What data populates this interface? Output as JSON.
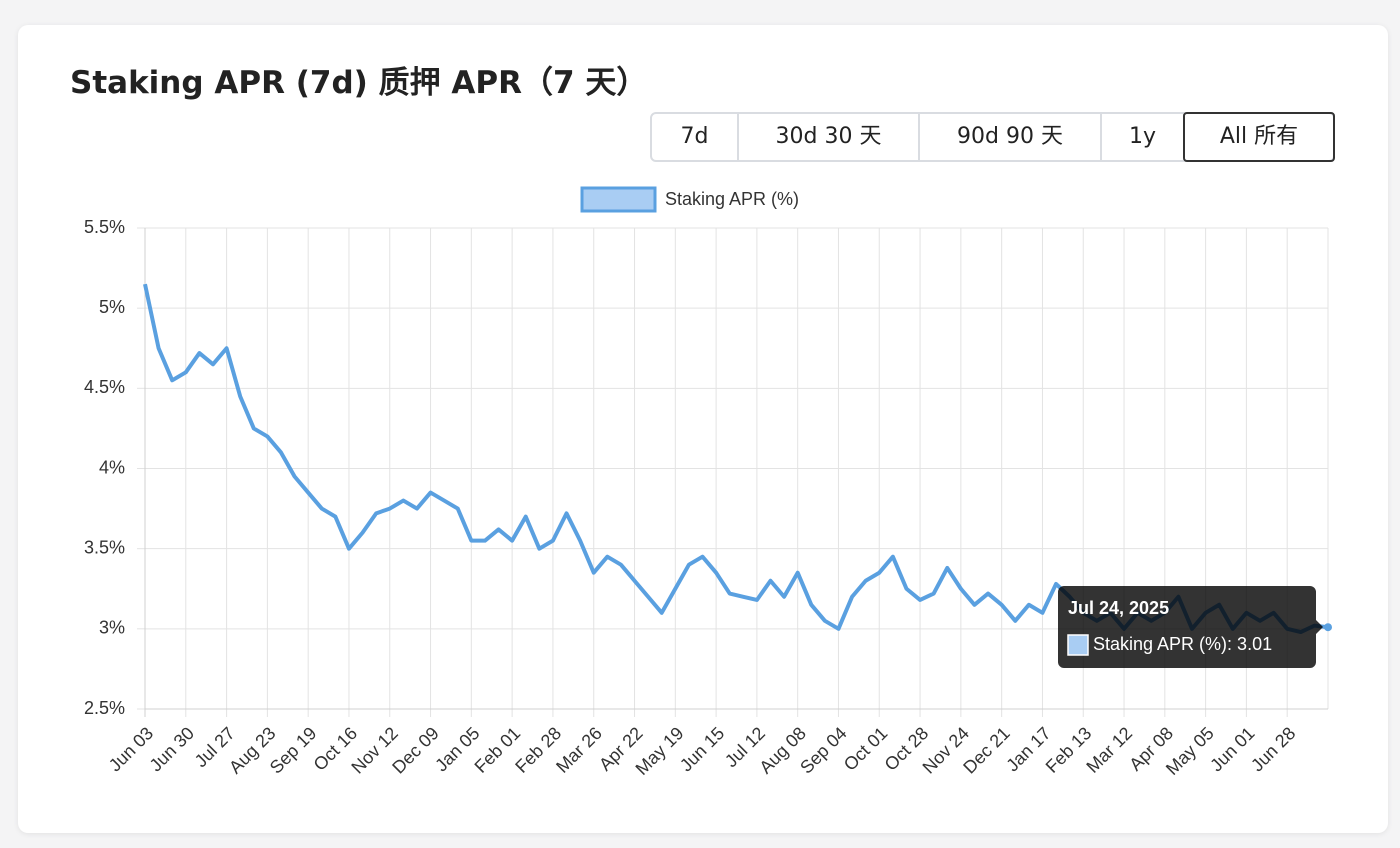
{
  "controls": {
    "buttons": [
      "7d",
      "30d  30 天",
      "90d  90 天",
      "1y",
      "All  所有"
    ],
    "selected": 4
  },
  "chart_data": {
    "type": "line",
    "title": "Staking APR (7d)  质押 APR（7 天）",
    "categories": [
      "Jun 03",
      null,
      null,
      "Jun 30",
      null,
      null,
      "Jul 27",
      null,
      null,
      "Aug 23",
      null,
      null,
      "Sep 19",
      null,
      null,
      "Oct 16",
      null,
      null,
      "Nov 12",
      null,
      null,
      "Dec 09",
      null,
      null,
      "Jan 05",
      null,
      null,
      "Feb 01",
      null,
      null,
      "Feb 28",
      null,
      null,
      "Mar 26",
      null,
      null,
      "Apr 22",
      null,
      null,
      "May 19",
      null,
      null,
      "Jun 15",
      null,
      null,
      "Jul 12",
      null,
      null,
      "Aug 08",
      null,
      null,
      "Sep 04",
      null,
      null,
      "Oct 01",
      null,
      null,
      "Oct 28",
      null,
      null,
      "Nov 24",
      null,
      null,
      "Dec 21",
      null,
      null,
      "Jan 17",
      null,
      null,
      "Feb 13",
      null,
      null,
      "Mar 12",
      null,
      null,
      "Apr 08",
      null,
      null,
      "May 05",
      null,
      null,
      "Jun 01",
      null,
      null,
      "Jun 28",
      null,
      null,
      null
    ],
    "series": [
      {
        "name": "Staking APR (%)",
        "color": "#5aa0e0",
        "fill": "#a9cdf3",
        "values": [
          5.15,
          4.75,
          4.55,
          4.6,
          4.72,
          4.65,
          4.75,
          4.45,
          4.25,
          4.2,
          4.1,
          3.95,
          3.85,
          3.75,
          3.7,
          3.5,
          3.6,
          3.72,
          3.75,
          3.8,
          3.75,
          3.85,
          3.8,
          3.75,
          3.55,
          3.55,
          3.62,
          3.55,
          3.7,
          3.5,
          3.55,
          3.72,
          3.55,
          3.35,
          3.45,
          3.4,
          3.3,
          3.2,
          3.1,
          3.25,
          3.4,
          3.45,
          3.35,
          3.22,
          3.2,
          3.18,
          3.3,
          3.2,
          3.35,
          3.15,
          3.05,
          3.0,
          3.2,
          3.3,
          3.35,
          3.45,
          3.25,
          3.18,
          3.22,
          3.38,
          3.25,
          3.15,
          3.22,
          3.15,
          3.05,
          3.15,
          3.1,
          3.28,
          3.2,
          3.1,
          3.05,
          3.1,
          3.0,
          3.1,
          3.05,
          3.1,
          3.2,
          3.0,
          3.1,
          3.15,
          3.0,
          3.1,
          3.05,
          3.1,
          3.0,
          2.98,
          3.02,
          3.01
        ]
      }
    ],
    "ylim": [
      2.5,
      5.5
    ],
    "yticks": [
      {
        "value": 2.5,
        "label": "2.5%"
      },
      {
        "value": 3,
        "label": "3%"
      },
      {
        "value": 3.5,
        "label": "3.5%"
      },
      {
        "value": 4,
        "label": "4%"
      },
      {
        "value": 4.5,
        "label": "4.5%"
      },
      {
        "value": 5,
        "label": "5%"
      },
      {
        "value": 5.5,
        "label": "5.5%"
      }
    ],
    "grid": true,
    "legend": "top",
    "tooltip": {
      "title": "Jul 24, 2025",
      "label": "Staking APR (%): 3.01"
    }
  }
}
